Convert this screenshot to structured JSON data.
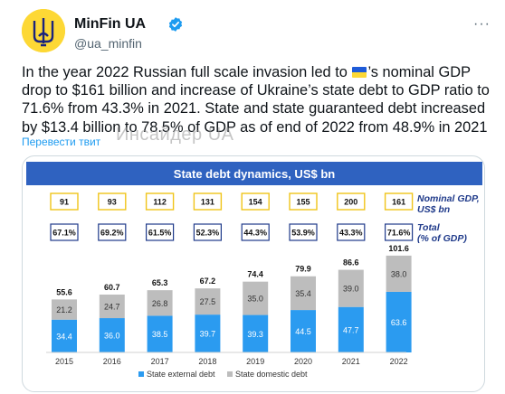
{
  "author": {
    "name": "MinFin UA",
    "handle": "@ua_minfin",
    "avatar_icon": "ukraine-trident-icon",
    "verified_icon": "verified-badge-icon",
    "more_icon": "more-options-icon",
    "more_label": "···"
  },
  "tweet": {
    "text_before_flag": "In the year 2022 Russian full scale invasion led to ",
    "flag_icon": "ukraine-flag-icon",
    "text_after_flag": "’s nominal GDP drop to $161 billion and increase of Ukraine’s state debt to GDP ratio to 71.6% from 43.3% in 2021. State and state guaranteed debt increased by $13.4 billion to 78.5% of GDP as of end of 2022 from 48.9% in 2021",
    "translate_label": "Перевести твит",
    "watermark": "Инсайдер UA"
  },
  "colors": {
    "accent": "#1d9bf0",
    "chart_title_bar": "#2f62c0",
    "external_debt": "#2b9bf0",
    "domestic_debt": "#bdbdbd",
    "box_border": "#f0c419",
    "label_blue": "#1f3a8a"
  },
  "chart_data": {
    "type": "bar",
    "stacked": true,
    "title": "State debt dynamics, US$ bn",
    "categories": [
      "2015",
      "2016",
      "2017",
      "2018",
      "2019",
      "2020",
      "2021",
      "2022"
    ],
    "series": [
      {
        "name": "State external debt",
        "values": [
          34.4,
          36.0,
          38.5,
          39.7,
          39.3,
          44.5,
          47.7,
          63.6
        ]
      },
      {
        "name": "State domestic debt",
        "values": [
          21.2,
          24.7,
          26.8,
          27.5,
          35.0,
          35.4,
          39.0,
          38.0
        ]
      }
    ],
    "totals": [
      55.6,
      60.7,
      65.3,
      67.2,
      74.4,
      79.9,
      86.6,
      101.6
    ],
    "value_labels": {
      "external": [
        "34.4",
        "36.0",
        "38.5",
        "39.7",
        "39.3",
        "44.5",
        "47.7",
        "63.6"
      ],
      "domestic": [
        "21.2",
        "24.7",
        "26.8",
        "27.5",
        "35.0",
        "35.4",
        "39.0",
        "38.0"
      ],
      "totals": [
        "55.6",
        "60.7",
        "65.3",
        "67.2",
        "74.4",
        "79.9",
        "86.6",
        "101.6"
      ]
    },
    "nominal_gdp": {
      "label_line1": "Nominal GDP,",
      "label_line2": "US$ bn",
      "values": [
        "91",
        "93",
        "112",
        "131",
        "154",
        "155",
        "200",
        "161"
      ]
    },
    "debt_to_gdp": {
      "label_line1": "Total",
      "label_line2": "(% of GDP)",
      "values": [
        "67.1%",
        "69.2%",
        "61.5%",
        "52.3%",
        "44.3%",
        "53.9%",
        "43.3%",
        "71.6%"
      ]
    },
    "ylim": [
      0,
      110
    ],
    "legend": [
      "State external debt",
      "State domestic debt"
    ],
    "legend_position": "bottom",
    "grid": false
  }
}
